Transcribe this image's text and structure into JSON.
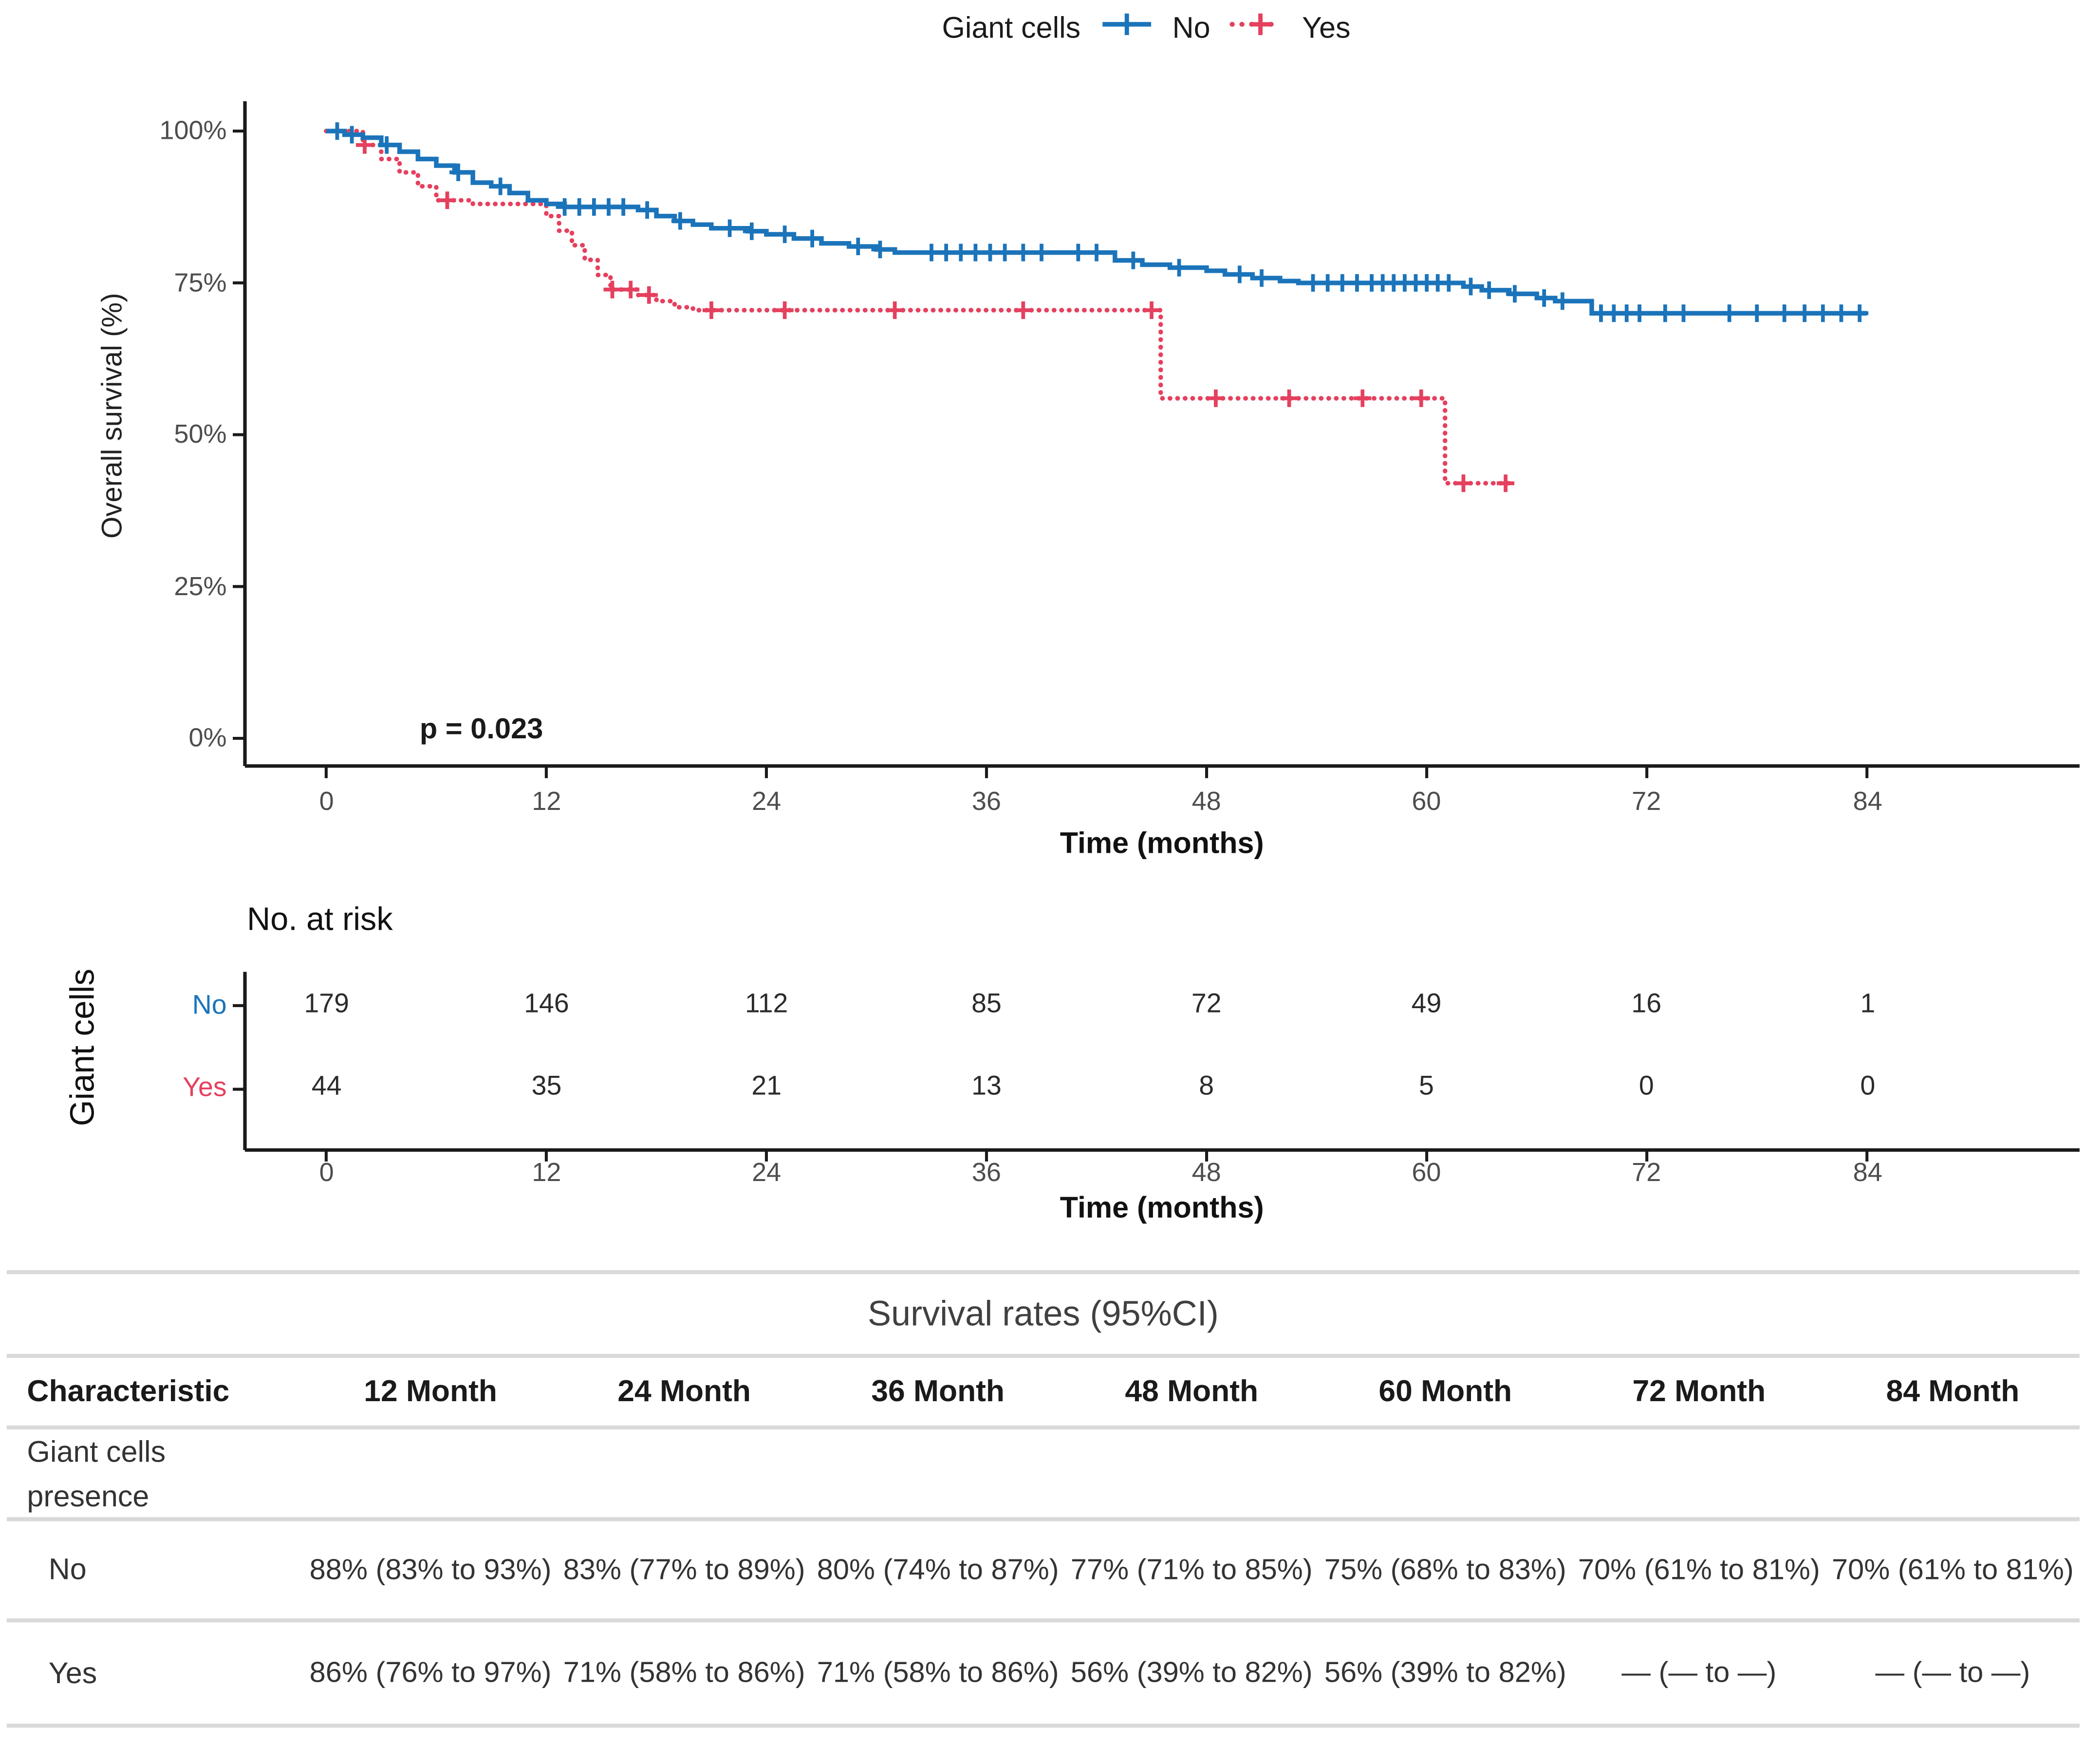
{
  "colors": {
    "no": "#1B74BA",
    "yes": "#E5405E",
    "axis": "#1a1a1a"
  },
  "legend": {
    "title": "Giant cells",
    "items": [
      {
        "label": "No"
      },
      {
        "label": "Yes"
      }
    ]
  },
  "chart_data": {
    "type": "line",
    "subtype": "kaplan-meier-step",
    "title": "",
    "xlabel": "Time (months)",
    "ylabel": "Overall survival (%)",
    "x_ticks": [
      "0",
      "12",
      "24",
      "36",
      "48",
      "60",
      "72",
      "84"
    ],
    "y_ticks": [
      "100%",
      "75%",
      "50%",
      "25%",
      "0%"
    ],
    "xlim": [
      0,
      96
    ],
    "ylim": [
      0,
      100
    ],
    "grid": false,
    "legend_position": "top",
    "p_value": "p = 0.023",
    "series": [
      {
        "name": "No",
        "color": "#1B74BA",
        "style": "solid",
        "steps": [
          [
            0,
            100
          ],
          [
            1,
            99.4
          ],
          [
            2,
            98.9
          ],
          [
            3,
            97.7
          ],
          [
            4,
            96.6
          ],
          [
            5,
            95.4
          ],
          [
            6,
            94.3
          ],
          [
            7,
            93.2
          ],
          [
            8,
            91.5
          ],
          [
            9,
            90.9
          ],
          [
            10,
            89.8
          ],
          [
            11,
            88.6
          ],
          [
            12,
            88
          ],
          [
            13,
            87.5
          ],
          [
            17,
            87
          ],
          [
            18,
            86
          ],
          [
            19,
            85.2
          ],
          [
            20,
            84.6
          ],
          [
            21,
            84
          ],
          [
            23,
            83.5
          ],
          [
            24,
            83
          ],
          [
            25.5,
            82.3
          ],
          [
            27,
            81.5
          ],
          [
            28.5,
            81
          ],
          [
            30,
            80.5
          ],
          [
            31,
            80
          ],
          [
            43,
            78.7
          ],
          [
            44.5,
            78
          ],
          [
            46,
            77.5
          ],
          [
            48,
            77
          ],
          [
            49,
            76.4
          ],
          [
            50.5,
            75.8
          ],
          [
            52,
            75.3
          ],
          [
            53,
            75
          ],
          [
            62,
            74.4
          ],
          [
            63,
            73.8
          ],
          [
            64.5,
            73.2
          ],
          [
            66,
            72.5
          ],
          [
            67,
            72
          ],
          [
            69,
            70
          ],
          [
            84,
            70
          ]
        ],
        "censor_times": [
          0.6,
          1.4,
          3.3,
          7.2,
          9.5,
          13,
          13.8,
          14.6,
          15.4,
          16.2,
          17.5,
          19.3,
          22,
          23.2,
          25,
          26.5,
          29,
          30.2,
          33,
          33.8,
          34.6,
          35.4,
          36.2,
          37,
          38,
          39,
          41,
          42,
          44,
          46.5,
          49.8,
          51,
          53.8,
          54.6,
          55.4,
          56.2,
          57,
          57.6,
          58.2,
          58.8,
          59.4,
          60,
          60.6,
          61.2,
          62.4,
          63.4,
          64.8,
          66.4,
          67.4,
          69.5,
          70.2,
          70.9,
          71.6,
          73,
          74,
          76.5,
          78,
          79.5,
          80.6,
          81.6,
          82.6,
          83.6
        ]
      },
      {
        "name": "Yes",
        "color": "#E5405E",
        "style": "dotted",
        "steps": [
          [
            0,
            100
          ],
          [
            2,
            97.7
          ],
          [
            3,
            95.4
          ],
          [
            4,
            93.2
          ],
          [
            5,
            90.9
          ],
          [
            6,
            88.6
          ],
          [
            8,
            88
          ],
          [
            12,
            86
          ],
          [
            12.7,
            83.6
          ],
          [
            13.4,
            81.2
          ],
          [
            14.1,
            78.8
          ],
          [
            14.8,
            76.3
          ],
          [
            15.5,
            73.9
          ],
          [
            17,
            73
          ],
          [
            18,
            72
          ],
          [
            19,
            71
          ],
          [
            20,
            70.5
          ],
          [
            45.5,
            56
          ],
          [
            61,
            42
          ],
          [
            64.5,
            42
          ]
        ],
        "censor_times": [
          2.1,
          6.6,
          15.6,
          16.6,
          17.6,
          21,
          25,
          31,
          38,
          45,
          48.5,
          52.5,
          56.5,
          59.7,
          62,
          64.3
        ]
      }
    ]
  },
  "risk_table": {
    "title": "No. at risk",
    "group_label": "Giant cells",
    "xlabel": "Time (months)",
    "x_ticks": [
      "0",
      "12",
      "24",
      "36",
      "48",
      "60",
      "72",
      "84"
    ],
    "rows": [
      {
        "label": "No",
        "values": [
          "179",
          "146",
          "112",
          "85",
          "72",
          "49",
          "16",
          "1"
        ]
      },
      {
        "label": "Yes",
        "values": [
          "44",
          "35",
          "21",
          "13",
          "8",
          "5",
          "0",
          "0"
        ]
      }
    ]
  },
  "summary_table": {
    "title": "Survival rates (95%CI)",
    "headers": [
      "Characteristic",
      "12 Month",
      "24 Month",
      "36 Month",
      "48 Month",
      "60 Month",
      "72 Month",
      "84 Month"
    ],
    "group_row_label": "Giant cells presence",
    "rows": [
      {
        "label": "No",
        "cells": [
          "88% (83% to 93%)",
          "83% (77% to 89%)",
          "80% (74% to 87%)",
          "77% (71% to 85%)",
          "75% (68% to 83%)",
          "70% (61% to 81%)",
          "70% (61% to 81%)"
        ]
      },
      {
        "label": "Yes",
        "cells": [
          "86% (76% to 97%)",
          "71% (58% to 86%)",
          "71% (58% to 86%)",
          "56% (39% to 82%)",
          "56% (39% to 82%)",
          "— (— to —)",
          "— (— to —)"
        ]
      }
    ]
  }
}
